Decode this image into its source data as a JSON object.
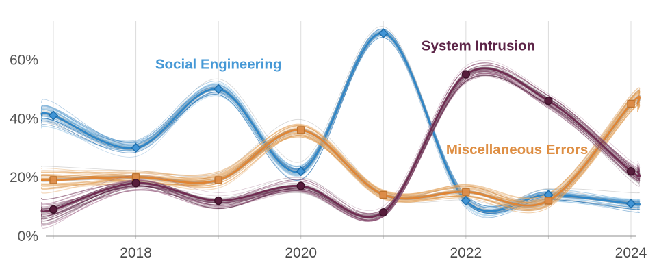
{
  "chart_data": {
    "type": "line",
    "variant": "spaghetti-uncertainty-plot",
    "title": "",
    "x": [
      2017,
      2018,
      2019,
      2020,
      2021,
      2022,
      2023,
      2024
    ],
    "x_axis": {
      "tick_years": [
        2018,
        2020,
        2022,
        2024
      ],
      "tick_labels": [
        "2018",
        "2020",
        "2022",
        "2024"
      ],
      "color": "#4a4a4a"
    },
    "y_axis": {
      "ticks": [
        0,
        20,
        40,
        60
      ],
      "tick_labels": [
        "0%",
        "20%",
        "40%",
        "60%"
      ],
      "range": [
        0,
        72
      ],
      "color": "#575757"
    },
    "grid": {
      "vertical": true,
      "horizontal": false,
      "color": "#dcdcdc"
    },
    "baseline_color": "#8f8f8f",
    "legend_position": "inline-annotations",
    "series": [
      {
        "name": "Social Engineering",
        "marker": "diamond",
        "color": "#2e86c8",
        "marker_fill": "#4195d6",
        "marker_stroke": "#1d6dab",
        "shade_light": "#9ed2f0",
        "shade_dark": "#1565ab",
        "values": [
          41,
          30,
          50,
          22,
          69,
          12,
          14,
          11
        ],
        "label": {
          "text": "Social Engineering",
          "color": "#4598d6",
          "x": 2019.0,
          "y": 58.5
        }
      },
      {
        "name": "Miscellaneous Errors",
        "marker": "square",
        "color": "#e08534",
        "marker_fill": "#dd8c47",
        "marker_stroke": "#bd702a",
        "shade_light": "#f6cb97",
        "shade_dark": "#c96f14",
        "values": [
          19,
          20,
          19,
          36,
          14,
          15,
          12,
          45
        ],
        "label": {
          "text": "Miscellaneous Errors",
          "color": "#de8e43",
          "x": 2022.62,
          "y": 29.5
        }
      },
      {
        "name": "System Intrusion",
        "marker": "circle",
        "color": "#702b51",
        "marker_fill": "#571d3c",
        "marker_stroke": "#3c1128",
        "shade_light": "#aa6d91",
        "shade_dark": "#4a1634",
        "values": [
          9,
          18,
          12,
          17,
          8,
          55,
          46,
          22
        ],
        "label": {
          "text": "System Intrusion",
          "color": "#5c2447",
          "x": 2022.15,
          "y": 64.8
        }
      }
    ]
  }
}
